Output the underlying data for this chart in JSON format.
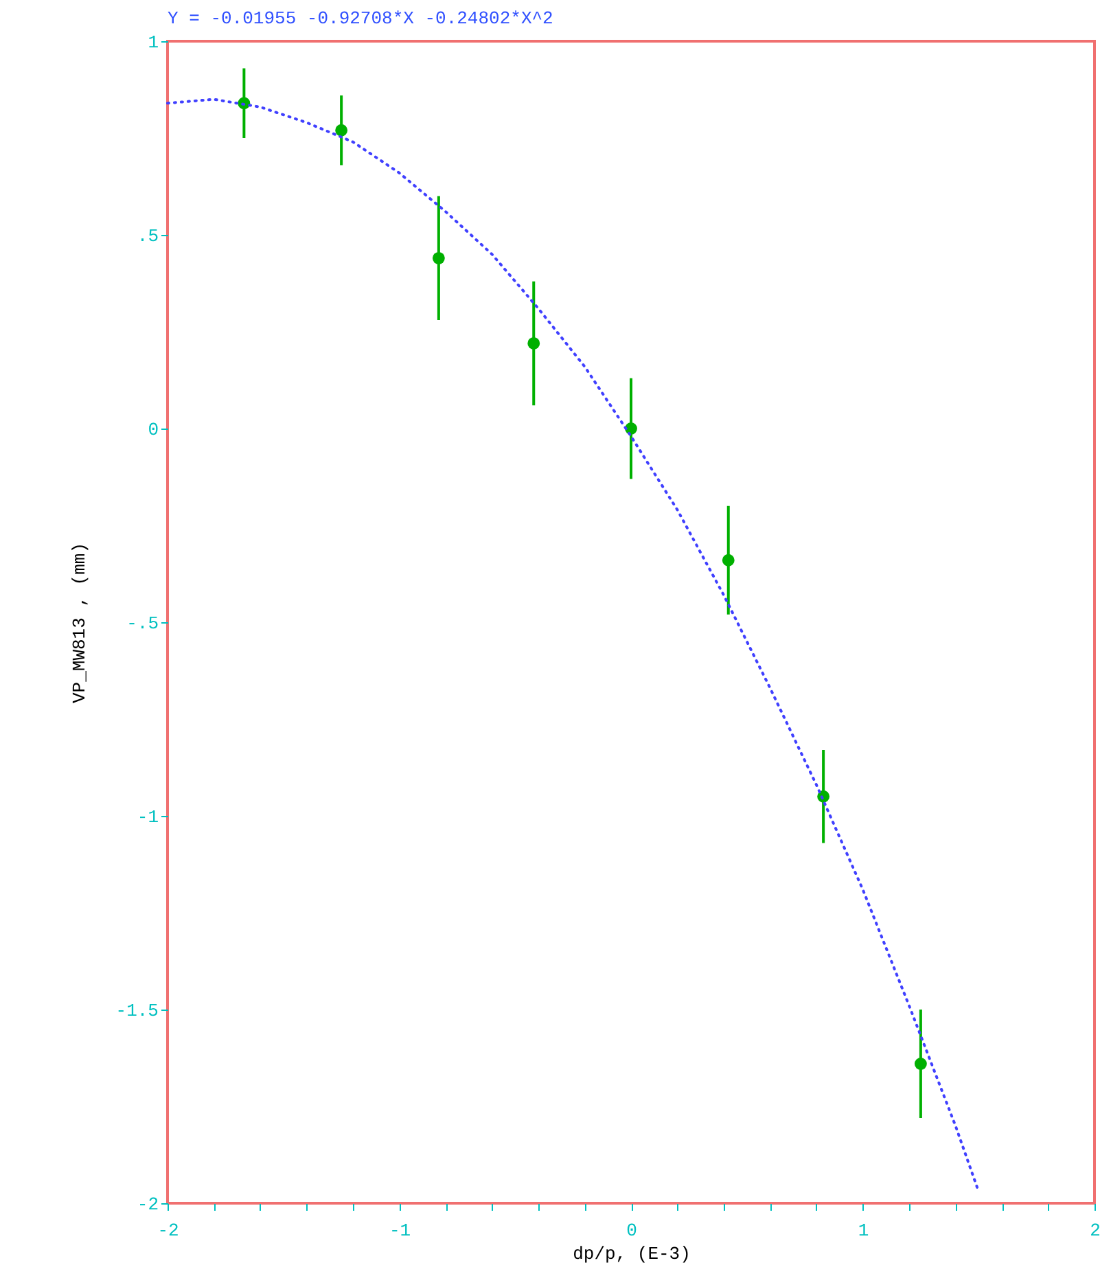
{
  "chart_data": {
    "type": "scatter",
    "title": "Y =  -0.01955 -0.92708*X  -0.24802*X^2",
    "xlabel": "dp/p, (E-3)",
    "ylabel": "VP_MW813  , (mm)",
    "xlim": [
      -2,
      2
    ],
    "ylim": [
      -2,
      1
    ],
    "xticks": [
      -2,
      {
        "value": -1.8,
        "label": null
      },
      {
        "value": -1.6,
        "label": null
      },
      {
        "value": -1.4,
        "label": null
      },
      {
        "value": -1.2,
        "label": null
      },
      -1,
      {
        "value": -0.8,
        "label": null
      },
      {
        "value": -0.6,
        "label": null
      },
      {
        "value": -0.4,
        "label": null
      },
      {
        "value": -0.2,
        "label": null
      },
      0,
      {
        "value": 0.2,
        "label": null
      },
      {
        "value": 0.4,
        "label": null
      },
      {
        "value": 0.6,
        "label": null
      },
      {
        "value": 0.8,
        "label": null
      },
      1,
      {
        "value": 1.2,
        "label": null
      },
      {
        "value": 1.4,
        "label": null
      },
      {
        "value": 1.6,
        "label": null
      },
      {
        "value": 1.8,
        "label": null
      },
      2
    ],
    "yticks": [
      -2,
      {
        "value": -1.5,
        "label": "-1.5"
      },
      -1,
      {
        "value": -0.5,
        "label": "-.5"
      },
      0,
      {
        "value": 0.5,
        "label": ".5"
      },
      1
    ],
    "grid": false,
    "series": [
      {
        "color": "#00b000",
        "marker": "circle",
        "x": [
          -1.67,
          -1.25,
          -0.83,
          -0.42,
          0,
          0.42,
          0.83,
          1.25
        ],
        "values": [
          0.84,
          0.77,
          0.44,
          0.22,
          0,
          -0.34,
          -0.95,
          -1.64
        ],
        "errors": [
          0.09,
          0.09,
          0.16,
          0.16,
          0.13,
          0.14,
          0.12,
          0.14
        ]
      },
      {
        "type": "line",
        "color": "#4040ff",
        "line_style": "dotted",
        "marker": "none",
        "x": [
          -2,
          -1.8,
          -1.6,
          -1.4,
          -1.2,
          -1,
          -0.8,
          -0.6,
          -0.4,
          -0.2,
          0,
          0.2,
          0.4,
          0.6,
          0.8,
          1,
          1.2,
          1.4,
          1.5
        ],
        "values": [
          0.84,
          0.85,
          0.83,
          0.79,
          0.74,
          0.66,
          0.56,
          0.45,
          0.31,
          0.16,
          -0.02,
          -0.21,
          -0.43,
          -0.67,
          -0.92,
          -1.19,
          -1.49,
          -1.8,
          -1.97
        ]
      }
    ]
  }
}
